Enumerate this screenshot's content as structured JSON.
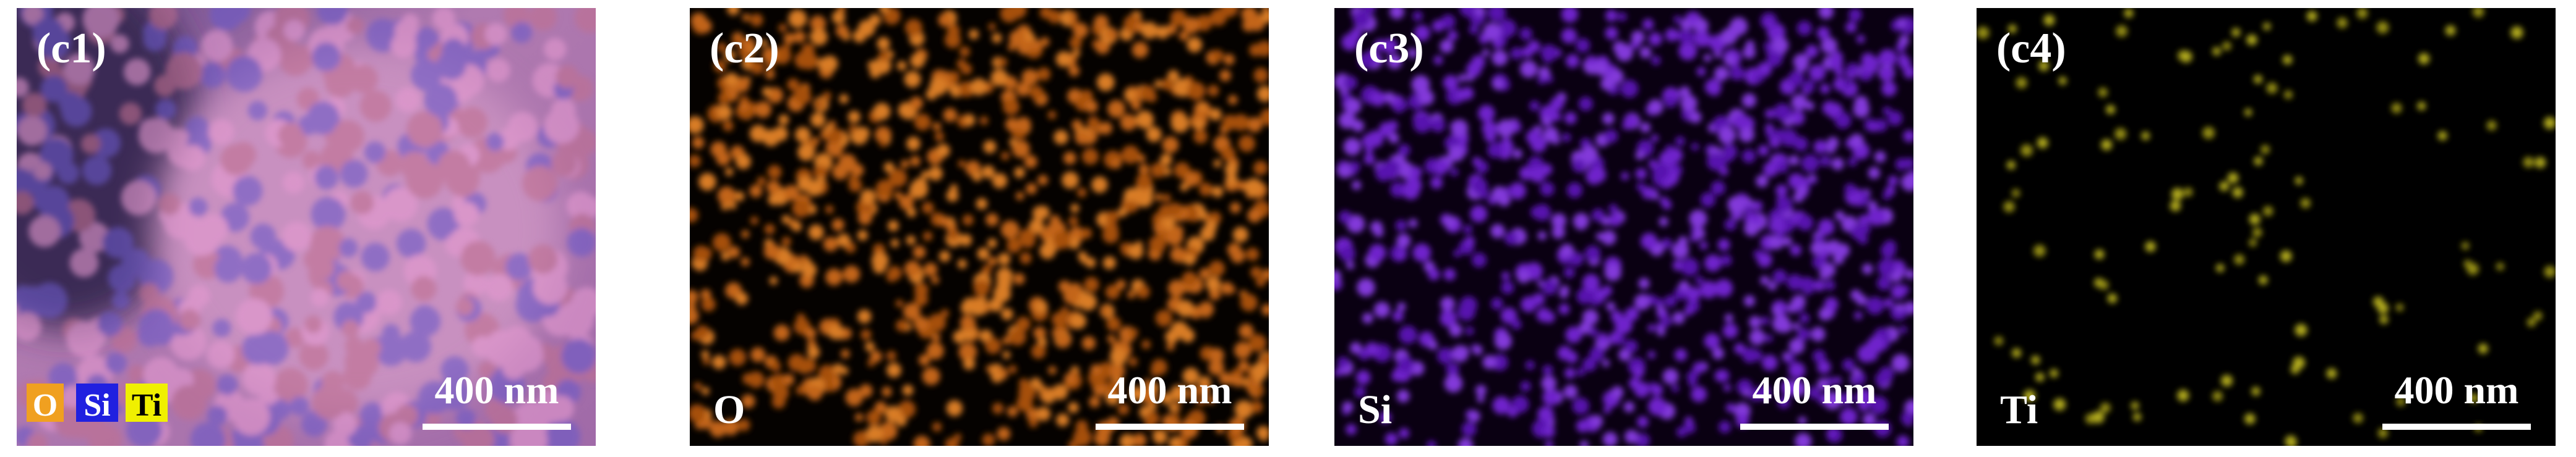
{
  "panels": [
    {
      "label": "(c1)",
      "legend": [
        "O",
        "Si",
        "Ti"
      ],
      "scale_bar": "400 nm"
    },
    {
      "label": "(c2)",
      "element": "O",
      "scale_bar": "400 nm"
    },
    {
      "label": "(c3)",
      "element": "Si",
      "scale_bar": "400 nm"
    },
    {
      "label": "(c4)",
      "element": "Ti",
      "scale_bar": "400 nm"
    }
  ]
}
